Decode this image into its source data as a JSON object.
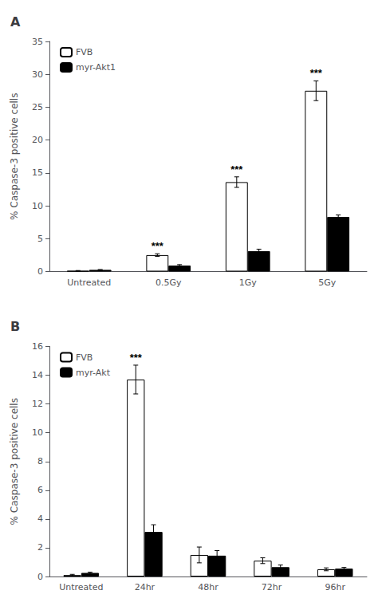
{
  "chart_data": [
    {
      "type": "bar",
      "title": "A",
      "categories": [
        "Untreated",
        "0.5Gy",
        "1Gy",
        "5Gy"
      ],
      "series": [
        {
          "name": "FVB",
          "color": "#ffffff",
          "values": [
            0.1,
            2.5,
            13.6,
            27.5
          ],
          "errors": [
            0.05,
            0.2,
            0.8,
            1.5
          ]
        },
        {
          "name": "myr-Akt1",
          "color": "#000000",
          "values": [
            0.25,
            0.9,
            3.1,
            8.3
          ],
          "errors": [
            0.05,
            0.15,
            0.3,
            0.3
          ]
        }
      ],
      "ylabel": "% Caspase-3 positive cells",
      "ylim": [
        0,
        35
      ],
      "yticks": [
        0,
        5,
        10,
        15,
        20,
        25,
        30,
        35
      ],
      "annotations": [
        {
          "text": "***",
          "category": "0.5Gy",
          "series": "FVB"
        },
        {
          "text": "***",
          "category": "1Gy",
          "series": "FVB"
        },
        {
          "text": "***",
          "category": "5Gy",
          "series": "FVB"
        }
      ],
      "legend": "upper left",
      "grid": false
    },
    {
      "type": "bar",
      "title": "B",
      "categories": [
        "Untreated",
        "24hr",
        "48hr",
        "72hr",
        "96hr"
      ],
      "series": [
        {
          "name": "FVB",
          "color": "#ffffff",
          "values": [
            0.1,
            13.7,
            1.5,
            1.1,
            0.5
          ],
          "errors": [
            0.05,
            1.0,
            0.55,
            0.2,
            0.1
          ]
        },
        {
          "name": "myr-Akt",
          "color": "#000000",
          "values": [
            0.25,
            3.1,
            1.45,
            0.65,
            0.55
          ],
          "errors": [
            0.05,
            0.5,
            0.35,
            0.15,
            0.08
          ]
        }
      ],
      "ylabel": "% Caspase-3 positive cells",
      "ylim": [
        0,
        16
      ],
      "yticks": [
        0,
        2,
        4,
        6,
        8,
        10,
        12,
        14,
        16
      ],
      "annotations": [
        {
          "text": "***",
          "category": "24hr",
          "series": "FVB"
        }
      ],
      "legend": "upper left",
      "grid": false
    }
  ]
}
